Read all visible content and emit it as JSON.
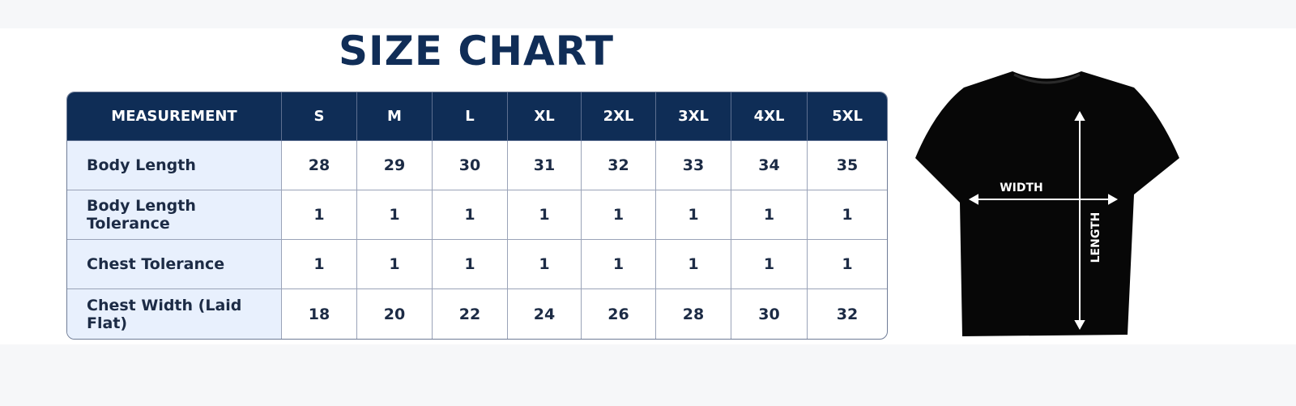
{
  "title": "SIZE CHART",
  "table": {
    "header": [
      "MEASUREMENT",
      "S",
      "M",
      "L",
      "XL",
      "2XL",
      "3XL",
      "4XL",
      "5XL"
    ],
    "rows": [
      [
        "Body Length",
        28,
        29,
        30,
        31,
        32,
        33,
        34,
        35
      ],
      [
        "Body Length Tolerance",
        1,
        1,
        1,
        1,
        1,
        1,
        1,
        1
      ],
      [
        "Chest Tolerance",
        1,
        1,
        1,
        1,
        1,
        1,
        1,
        1
      ],
      [
        "Chest Width (Laid Flat)",
        18,
        20,
        22,
        24,
        26,
        28,
        30,
        32
      ]
    ]
  },
  "diagram": {
    "width_label": "WIDTH",
    "length_label": "LENGTH"
  }
}
